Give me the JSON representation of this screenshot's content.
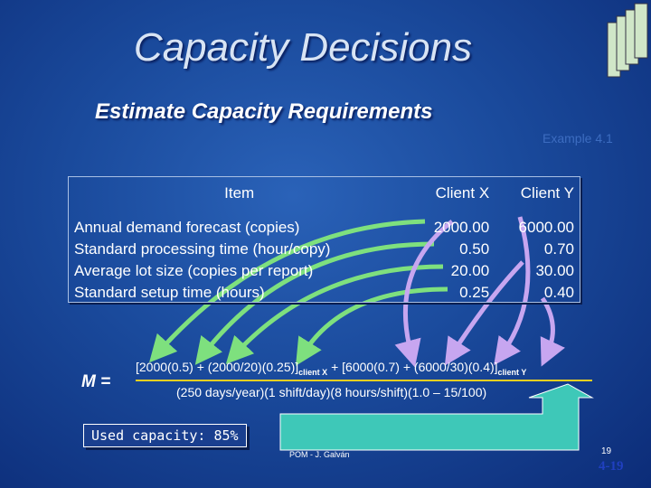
{
  "title": "Capacity Decisions",
  "subtitle": "Estimate Capacity Requirements",
  "example": "Example 4.1",
  "table": {
    "header": [
      "Item",
      "Client X",
      "Client Y"
    ],
    "rows": [
      [
        "Annual demand forecast (copies)",
        "2000.00",
        "6000.00"
      ],
      [
        "Standard processing time (hour/copy)",
        "0.50",
        "0.70"
      ],
      [
        "Average lot size (copies per report)",
        "20.00",
        "30.00"
      ],
      [
        "Standard setup time (hours)",
        "0.25",
        "0.40"
      ]
    ]
  },
  "formula": {
    "lhs": "M =",
    "numerator": [
      "[2000(0.5) + (2000/20)(0.25)]",
      "client X",
      "+ [6000(0.7) + (6000/30)(0.4)]",
      "client Y"
    ],
    "denominator": "(250 days/year)(1 shift/day)(8 hours/shift)(1.0 – 15/100)"
  },
  "result": "Used capacity: 85%",
  "footer": {
    "author": "POM - J. Galván",
    "page": "19",
    "slide": "4-19"
  }
}
